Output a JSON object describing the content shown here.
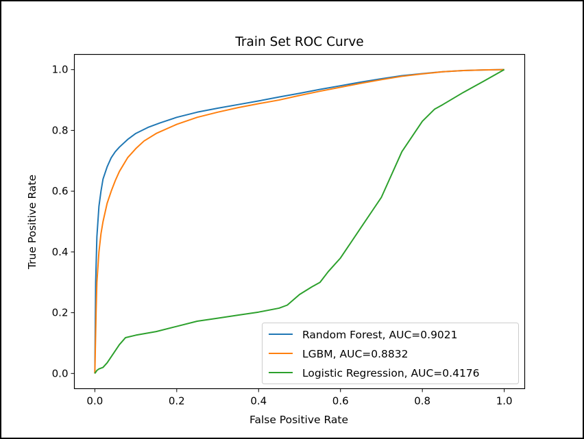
{
  "chart_data": {
    "type": "line",
    "title": "Train Set ROC Curve",
    "xlabel": "False Positive Rate",
    "ylabel": "True Positive Rate",
    "xlim": [
      -0.05,
      1.05
    ],
    "ylim": [
      -0.05,
      1.05
    ],
    "xticks": [
      0.0,
      0.2,
      0.4,
      0.6,
      0.8,
      1.0
    ],
    "yticks": [
      0.0,
      0.2,
      0.4,
      0.6,
      0.8,
      1.0
    ],
    "xtick_labels": [
      "0.0",
      "0.2",
      "0.4",
      "0.6",
      "0.8",
      "1.0"
    ],
    "ytick_labels": [
      "0.0",
      "0.2",
      "0.4",
      "0.6",
      "0.8",
      "1.0"
    ],
    "grid": false,
    "legend_position": "lower-right",
    "series": [
      {
        "name": "Random Forest, AUC=0.9021",
        "color": "#1f77b4",
        "x": [
          0,
          0.002,
          0.005,
          0.01,
          0.015,
          0.02,
          0.03,
          0.04,
          0.05,
          0.06,
          0.08,
          0.1,
          0.13,
          0.16,
          0.2,
          0.25,
          0.3,
          0.35,
          0.4,
          0.45,
          0.5,
          0.55,
          0.6,
          0.65,
          0.7,
          0.75,
          0.8,
          0.85,
          0.9,
          0.95,
          1.0
        ],
        "y": [
          0,
          0.3,
          0.45,
          0.55,
          0.6,
          0.64,
          0.68,
          0.71,
          0.73,
          0.745,
          0.77,
          0.79,
          0.81,
          0.825,
          0.843,
          0.86,
          0.873,
          0.885,
          0.897,
          0.91,
          0.922,
          0.935,
          0.947,
          0.959,
          0.97,
          0.98,
          0.987,
          0.993,
          0.997,
          0.999,
          1.0
        ]
      },
      {
        "name": "LGBM, AUC=0.8832",
        "color": "#ff7f0e",
        "x": [
          0,
          0.003,
          0.005,
          0.01,
          0.015,
          0.02,
          0.03,
          0.04,
          0.05,
          0.06,
          0.08,
          0.1,
          0.12,
          0.15,
          0.2,
          0.25,
          0.3,
          0.35,
          0.4,
          0.45,
          0.5,
          0.55,
          0.6,
          0.65,
          0.7,
          0.75,
          0.8,
          0.85,
          0.9,
          0.95,
          1.0
        ],
        "y": [
          0,
          0.2,
          0.3,
          0.4,
          0.46,
          0.5,
          0.56,
          0.6,
          0.635,
          0.665,
          0.71,
          0.74,
          0.765,
          0.79,
          0.82,
          0.843,
          0.86,
          0.875,
          0.888,
          0.9,
          0.915,
          0.929,
          0.942,
          0.955,
          0.967,
          0.978,
          0.986,
          0.993,
          0.997,
          0.999,
          1.0
        ]
      },
      {
        "name": "Logistic Regression, AUC=0.4176",
        "color": "#2ca02c",
        "x": [
          0,
          0.005,
          0.01,
          0.02,
          0.03,
          0.04,
          0.05,
          0.06,
          0.075,
          0.1,
          0.15,
          0.2,
          0.25,
          0.3,
          0.35,
          0.4,
          0.45,
          0.47,
          0.5,
          0.53,
          0.55,
          0.57,
          0.6,
          0.62,
          0.65,
          0.68,
          0.7,
          0.72,
          0.75,
          0.78,
          0.8,
          0.83,
          0.85,
          0.9,
          0.95,
          1.0
        ],
        "y": [
          0,
          0.01,
          0.015,
          0.02,
          0.035,
          0.055,
          0.075,
          0.095,
          0.118,
          0.126,
          0.138,
          0.155,
          0.172,
          0.182,
          0.192,
          0.202,
          0.215,
          0.225,
          0.26,
          0.285,
          0.3,
          0.335,
          0.38,
          0.42,
          0.48,
          0.54,
          0.58,
          0.64,
          0.73,
          0.79,
          0.83,
          0.87,
          0.885,
          0.925,
          0.962,
          1.0
        ]
      }
    ]
  }
}
